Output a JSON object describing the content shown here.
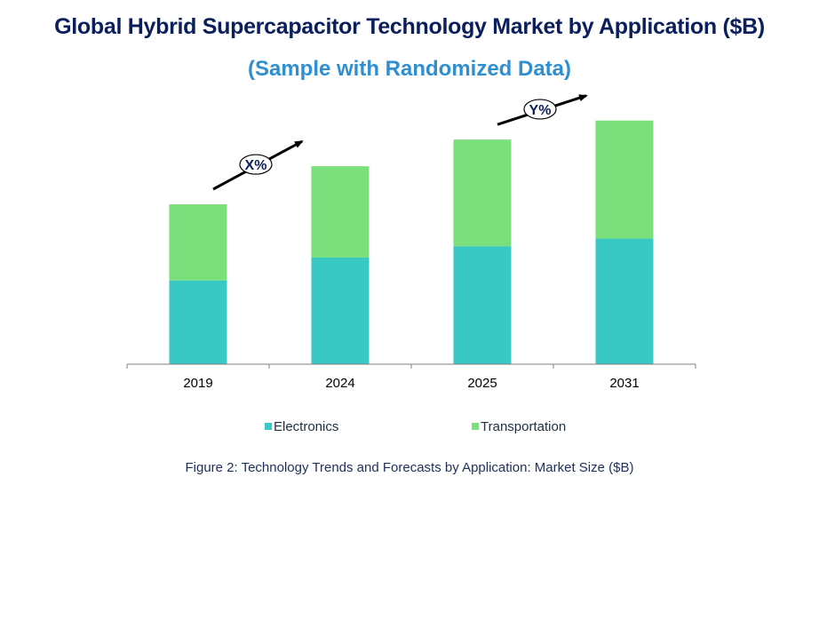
{
  "title": "Global Hybrid Supercapacitor Technology Market by Application ($B)",
  "subtitle": "(Sample with Randomized Data)",
  "caption": "Figure 2: Technology  Trends  and Forecasts by Application: Market Size ($B)",
  "colors": {
    "electronics": "#38c9c4",
    "transportation": "#7be07c",
    "title": "#0b1f5c",
    "subtitle": "#2f8fd0",
    "axis": "#808080",
    "arrow": "#000000"
  },
  "chart_data": {
    "type": "bar",
    "stacked": true,
    "categories": [
      "2019",
      "2024",
      "2025",
      "2031"
    ],
    "series": [
      {
        "name": "Electronics",
        "values": [
          2.2,
          2.8,
          3.1,
          3.3
        ]
      },
      {
        "name": "Transportation",
        "values": [
          2.0,
          2.4,
          2.8,
          3.1
        ]
      }
    ],
    "ylim": [
      0,
      7
    ],
    "grid": false,
    "legend": "bottom",
    "annotations": [
      {
        "text": "X%",
        "from": "2019",
        "to": "2024"
      },
      {
        "text": "Y%",
        "from": "2025",
        "to": "2031"
      }
    ]
  }
}
